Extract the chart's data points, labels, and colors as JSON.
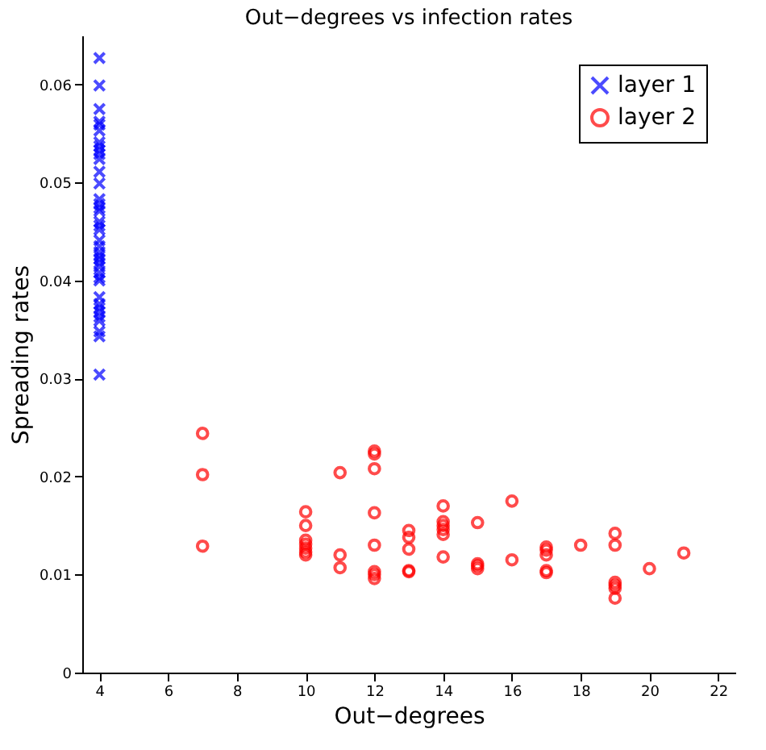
{
  "chart_data": {
    "type": "scatter",
    "title": "Out−degrees vs infection rates",
    "xlabel": "Out−degrees",
    "ylabel": "Spreading rates",
    "xlim": [
      3.5,
      22.5
    ],
    "xticks": [
      4,
      6,
      8,
      10,
      12,
      14,
      16,
      18,
      20,
      22
    ],
    "ylim": [
      0,
      0.065
    ],
    "yticks": [
      0,
      0.01,
      0.02,
      0.03,
      0.04,
      0.05,
      0.06
    ],
    "grid": false,
    "legend": "top right",
    "series": [
      {
        "name": "layer 1",
        "color": "#0000ff",
        "marker": "cross",
        "x": [
          4,
          4,
          4,
          4,
          4,
          4,
          4,
          4,
          4,
          4,
          4,
          4,
          4,
          4,
          4,
          4,
          4,
          4,
          4,
          4,
          4,
          4,
          4,
          4,
          4,
          4,
          4,
          4,
          4,
          4,
          4,
          4,
          4,
          4,
          4,
          4,
          4,
          4,
          4
        ],
        "values": [
          0.0627,
          0.0599,
          0.0575,
          0.0562,
          0.0559,
          0.0553,
          0.0541,
          0.0537,
          0.0533,
          0.0529,
          0.0524,
          0.0511,
          0.0499,
          0.0483,
          0.0478,
          0.0474,
          0.0471,
          0.046,
          0.0456,
          0.0452,
          0.0441,
          0.0435,
          0.0429,
          0.0425,
          0.0422,
          0.0418,
          0.0414,
          0.0408,
          0.0403,
          0.04,
          0.0383,
          0.0376,
          0.0372,
          0.0368,
          0.0363,
          0.0359,
          0.0348,
          0.0343,
          0.0304
        ]
      },
      {
        "name": "layer 2",
        "color": "#ff0000",
        "marker": "circle",
        "x": [
          7,
          7,
          7,
          10,
          10,
          10,
          10,
          10,
          10,
          10,
          11,
          11,
          11,
          12,
          12,
          12,
          12,
          12,
          12,
          12,
          12,
          13,
          13,
          13,
          13,
          13,
          14,
          14,
          14,
          14,
          14,
          14,
          15,
          15,
          15,
          15,
          16,
          16,
          17,
          17,
          17,
          17,
          17,
          18,
          19,
          19,
          19,
          19,
          19,
          19,
          20,
          21
        ],
        "values": [
          0.0244,
          0.0202,
          0.0129,
          0.0164,
          0.015,
          0.0135,
          0.0131,
          0.0127,
          0.0123,
          0.012,
          0.0204,
          0.012,
          0.0107,
          0.0226,
          0.0223,
          0.0208,
          0.0163,
          0.013,
          0.0103,
          0.01,
          0.0096,
          0.0145,
          0.0138,
          0.0126,
          0.0104,
          0.0103,
          0.017,
          0.0154,
          0.015,
          0.0146,
          0.0141,
          0.0118,
          0.0153,
          0.0111,
          0.0109,
          0.0106,
          0.0175,
          0.0115,
          0.0128,
          0.0125,
          0.012,
          0.0104,
          0.0102,
          0.013,
          0.0142,
          0.013,
          0.0092,
          0.0089,
          0.0086,
          0.0076,
          0.0106,
          0.0122
        ]
      }
    ]
  }
}
